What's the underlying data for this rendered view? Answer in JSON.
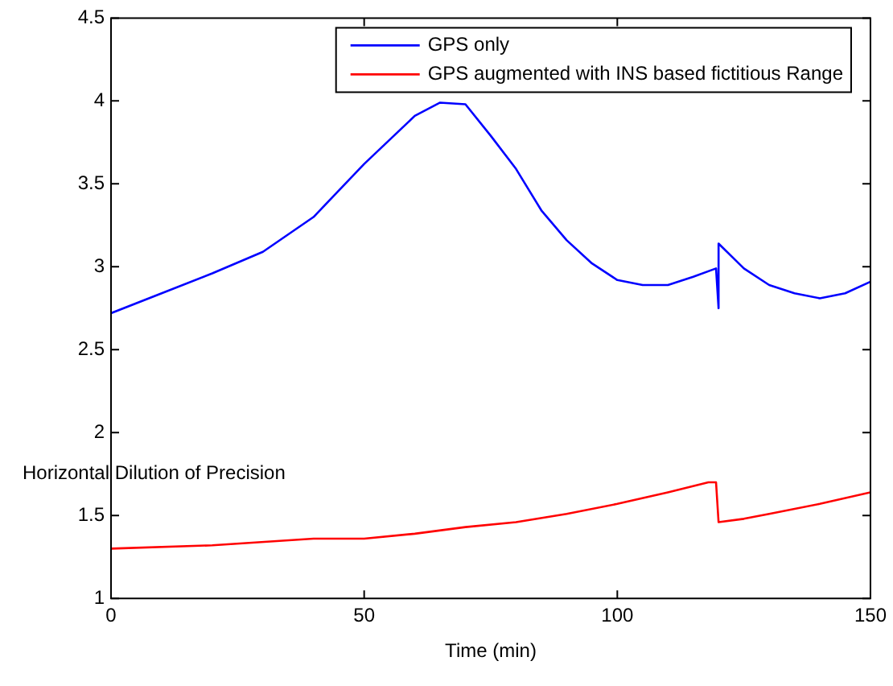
{
  "chart_data": {
    "type": "line",
    "xlabel": "Time (min)",
    "ylabel": "Horizontal Dilution of Precision",
    "xlim": [
      0,
      150
    ],
    "xticks": [
      0,
      50,
      100,
      150
    ],
    "ylim": [
      1,
      4.5
    ],
    "yticks": [
      1,
      1.5,
      2,
      2.5,
      3,
      3.5,
      4,
      4.5
    ],
    "grid": false,
    "legend": "top right",
    "marker": "none",
    "line_style": "solid",
    "series": [
      {
        "name": "GPS only",
        "color": "#0000ff",
        "x": [
          0,
          10,
          20,
          30,
          40,
          50,
          60,
          65,
          70,
          75,
          80,
          85,
          90,
          95,
          100,
          105,
          110,
          115,
          119.5,
          120,
          120,
          125,
          130,
          135,
          140,
          145,
          150
        ],
        "values": [
          2.72,
          2.84,
          2.96,
          3.09,
          3.3,
          3.62,
          3.91,
          3.99,
          3.98,
          3.79,
          3.59,
          3.34,
          3.16,
          3.02,
          2.92,
          2.89,
          2.89,
          2.94,
          2.99,
          2.75,
          3.14,
          2.99,
          2.89,
          2.84,
          2.81,
          2.84,
          2.91
        ]
      },
      {
        "name": "GPS augmented with INS based fictitious Range",
        "color": "#ff0000",
        "x": [
          0,
          20,
          40,
          50,
          60,
          70,
          80,
          90,
          100,
          110,
          118,
          119.5,
          120,
          125,
          130,
          140,
          150
        ],
        "values": [
          1.3,
          1.32,
          1.36,
          1.36,
          1.39,
          1.43,
          1.46,
          1.51,
          1.57,
          1.64,
          1.7,
          1.7,
          1.46,
          1.48,
          1.51,
          1.57,
          1.64
        ]
      }
    ]
  }
}
